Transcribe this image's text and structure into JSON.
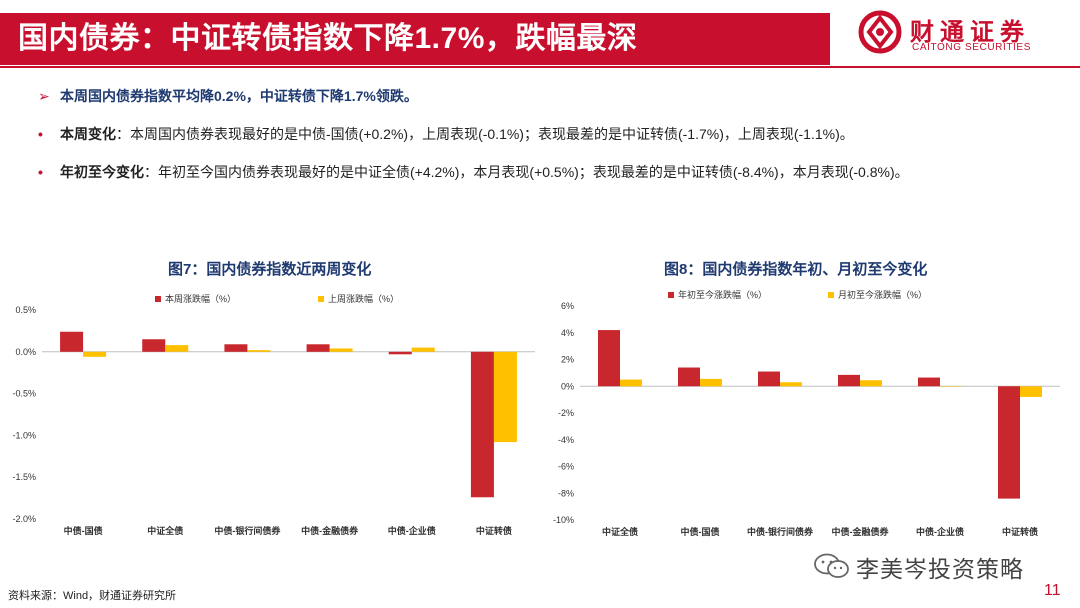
{
  "header": {
    "title": "国内债券：中证转债指数下降1.7%，跌幅最深",
    "logo_cn": "财通证券",
    "logo_en": "CAITONG SECURITIES"
  },
  "bullets": {
    "b1_marker": "➢",
    "b1_text": "本周国内债券指数平均降0.2%，中证转债下降1.7%领跌。",
    "b2_marker": "•",
    "b2_bold": "本周变化",
    "b2_text": "：本周国内债券表现最好的是中债-国债(+0.2%)，上周表现(-0.1%)；表现最差的是中证转债(-1.7%)，上周表现(-1.1%)。",
    "b3_marker": "•",
    "b3_bold": "年初至今变化",
    "b3_text": "：年初至今国内债券表现最好的是中证全债(+4.2%)，本月表现(+0.5%)；表现最差的是中证转债(-8.4%)，本月表现(-0.8%)。"
  },
  "footer": {
    "source": "资料来源：Wind，财通证券研究所",
    "watermark": "李美岑投资策略",
    "page": "11"
  },
  "colors": {
    "brand_red": "#c8102e",
    "series_red": "#c8272d",
    "series_yellow": "#ffc000",
    "navy": "#1f3a70"
  },
  "chart_data": [
    {
      "type": "bar",
      "title": "图7：国内债券指数近两周变化",
      "categories": [
        "中债-国债",
        "中证全债",
        "中债-银行间债券",
        "中债-金融债券",
        "中债-企业债",
        "中证转债"
      ],
      "series": [
        {
          "name": "本周涨跌幅（%）",
          "color": "#c8272d",
          "values": [
            0.24,
            0.15,
            0.09,
            0.09,
            -0.03,
            -1.74
          ]
        },
        {
          "name": "上周涨跌幅（%）",
          "color": "#ffc000",
          "values": [
            -0.06,
            0.08,
            0.02,
            0.04,
            0.05,
            -1.08
          ]
        }
      ],
      "yticks": [
        "0.5%",
        "0.0%",
        "-0.5%",
        "-1.0%",
        "-1.5%",
        "-2.0%"
      ],
      "ylim": [
        -2.0,
        0.5
      ],
      "ytick_step": 0.5,
      "legend": "top"
    },
    {
      "type": "bar",
      "title": "图8：国内债券指数年初、月初至今变化",
      "categories": [
        "中证全债",
        "中债-国债",
        "中债-银行间债券",
        "中债-金融债券",
        "中债-企业债",
        "中证转债"
      ],
      "series": [
        {
          "name": "年初至今涨跌幅（%）",
          "color": "#c8272d",
          "values": [
            4.2,
            1.4,
            1.1,
            0.85,
            0.65,
            -8.4
          ]
        },
        {
          "name": "月初至今涨跌幅（%）",
          "color": "#ffc000",
          "values": [
            0.5,
            0.55,
            0.3,
            0.45,
            0.0,
            -0.8
          ]
        }
      ],
      "yticks": [
        "6%",
        "4%",
        "2%",
        "0%",
        "-2%",
        "-4%",
        "-6%",
        "-8%",
        "-10%"
      ],
      "ylim": [
        -10,
        6
      ],
      "ytick_step": 2,
      "legend": "top"
    }
  ]
}
